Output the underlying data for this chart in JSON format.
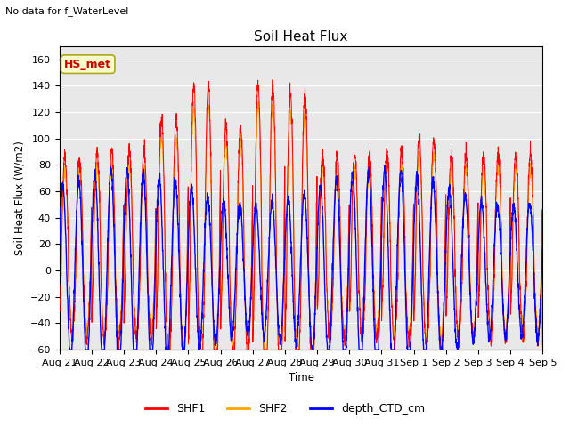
{
  "title": "Soil Heat Flux",
  "subtitle": "No data for f_WaterLevel",
  "ylabel": "Soil Heat Flux (W/m2)",
  "xlabel": "Time",
  "ylim": [
    -60,
    170
  ],
  "yticks": [
    -60,
    -40,
    -20,
    0,
    20,
    40,
    60,
    80,
    100,
    120,
    140,
    160
  ],
  "annotation_box": "HS_met",
  "annotation_color": "#cc0000",
  "annotation_bg": "#ffffcc",
  "legend_labels": [
    "SHF1",
    "SHF2",
    "depth_CTD_cm"
  ],
  "line_colors": [
    "red",
    "orange",
    "blue"
  ],
  "num_days": 15,
  "x_tick_labels": [
    "Aug 21",
    "Aug 22",
    "Aug 23",
    "Aug 24",
    "Aug 25",
    "Aug 26",
    "Aug 27",
    "Aug 28",
    "Aug 29",
    "Aug 30",
    "Aug 31",
    "Sep 1",
    "Sep 2",
    "Sep 3",
    "Sep 4",
    "Sep 5"
  ],
  "background_color": "#e8e8e8",
  "figsize": [
    6.4,
    4.8
  ],
  "dpi": 100
}
